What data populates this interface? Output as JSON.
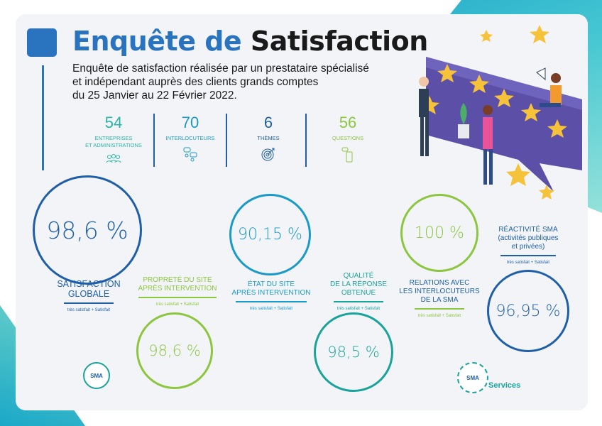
{
  "header": {
    "title_part1": "Enquête de",
    "title_part2": "Satisfaction",
    "intro_line1": "Enquête de satisfaction réalisée par un prestataire spécialisé",
    "intro_line2": "et indépendant auprès des clients grands comptes",
    "intro_line3": "du 25 Janvier au 22 Février 2022."
  },
  "stats": [
    {
      "value": "54",
      "label1": "ENTREPRISES",
      "label2": "ET ADMINISTRATIONS",
      "icon": "people-icon",
      "color": "#2ab4a8"
    },
    {
      "value": "70",
      "label1": "INTERLOCUTEURS",
      "label2": "",
      "icon": "chat-people-icon",
      "color": "#1a9ac8"
    },
    {
      "value": "6",
      "label1": "THÈMES",
      "label2": "",
      "icon": "target-icon",
      "color": "#1e5fa8"
    },
    {
      "value": "56",
      "label1": "QUESTIONS",
      "label2": "",
      "icon": "phone-chat-icon",
      "color": "#8cc63f"
    }
  ],
  "results": {
    "satisfaction": {
      "value": "98,6 %",
      "label1": "SATISFACTION",
      "label2": "GLOBALE",
      "sub": "très satisfait + Satisfait",
      "color": "#1e5fa8"
    },
    "proprete": {
      "value": "98,6 %",
      "label1": "PROPRETÉ DU SITE",
      "label2": "APRÈS INTERVENTION",
      "sub": "très satisfait + Satisfait",
      "color": "#8cc63f"
    },
    "etat": {
      "value": "90,15 %",
      "label1": "ÉTAT DU SITE",
      "label2": "APRÈS INTERVENTION",
      "sub": "très satisfait + Satisfait",
      "color": "#1a9ac8"
    },
    "qualite": {
      "value": "98,5 %",
      "label1": "QUALITÉ",
      "label2": "DE LA RÉPONSE",
      "label3": "OBTENUE",
      "sub": "très satisfait + Satisfait",
      "color": "#1aa39a"
    },
    "relations": {
      "value": "100 %",
      "label1": "RELATIONS AVEC",
      "label2": "LES INTERLOCUTEURS",
      "label3": "DE LA SMA",
      "sub": "très satisfait + Satisfait",
      "color": "#8cc63f"
    },
    "reactivite": {
      "value": "96,95 %",
      "label1": "RÉACTIVITÉ SMA",
      "label2": "(activités publiques",
      "label3": "et privées)",
      "sub": "très satisfait + Satisfait",
      "color": "#1e5fa8"
    }
  },
  "logos": {
    "left_text": "SMA",
    "right_text": "SMA",
    "services": "Services"
  }
}
